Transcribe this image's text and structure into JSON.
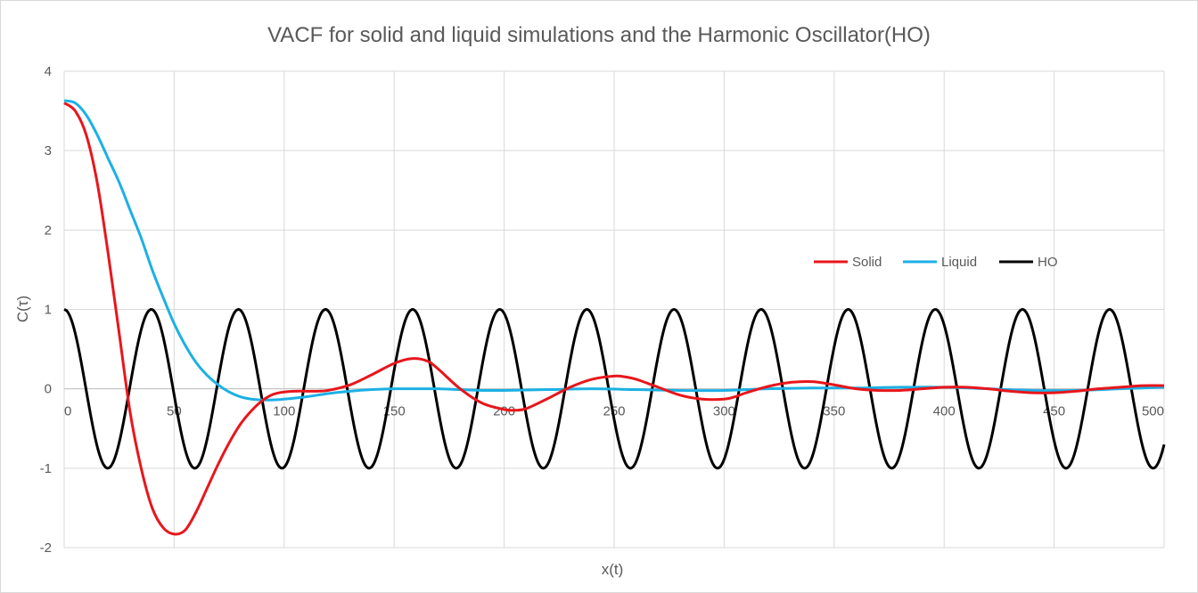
{
  "chart_data": {
    "type": "line",
    "title": "VACF for solid and liquid simulations and the Harmonic Oscillator(HO)",
    "xlabel": "x(t)",
    "ylabel": "C(τ)",
    "xlim": [
      0,
      500
    ],
    "ylim": [
      -2,
      4
    ],
    "x_ticks": [
      0,
      50,
      100,
      150,
      200,
      250,
      300,
      350,
      400,
      450,
      500
    ],
    "y_ticks": [
      -2,
      -1,
      0,
      1,
      2,
      3,
      4
    ],
    "grid": "vertical and horizontal major gridlines",
    "legend_position": "right-center",
    "series": [
      {
        "name": "Solid",
        "color": "#e8161b",
        "x": [
          0,
          5,
          10,
          15,
          20,
          25,
          30,
          35,
          40,
          45,
          50,
          55,
          60,
          65,
          70,
          75,
          80,
          85,
          90,
          95,
          100,
          105,
          110,
          115,
          120,
          130,
          140,
          150,
          158,
          165,
          170,
          180,
          190,
          200,
          205,
          210,
          220,
          230,
          240,
          250,
          255,
          260,
          270,
          280,
          290,
          300,
          305,
          310,
          320,
          330,
          340,
          350,
          360,
          370,
          380,
          390,
          400,
          410,
          420,
          430,
          440,
          450,
          460,
          470,
          480,
          490,
          500
        ],
        "values": [
          3.6,
          3.5,
          3.2,
          2.6,
          1.7,
          0.7,
          -0.3,
          -1.0,
          -1.5,
          -1.75,
          -1.83,
          -1.78,
          -1.55,
          -1.25,
          -0.95,
          -0.68,
          -0.45,
          -0.28,
          -0.15,
          -0.07,
          -0.04,
          -0.03,
          -0.03,
          -0.03,
          -0.02,
          0.05,
          0.18,
          0.32,
          0.38,
          0.35,
          0.25,
          0.0,
          -0.18,
          -0.26,
          -0.27,
          -0.25,
          -0.12,
          0.02,
          0.12,
          0.16,
          0.15,
          0.12,
          0.02,
          -0.08,
          -0.13,
          -0.13,
          -0.1,
          -0.05,
          0.03,
          0.08,
          0.09,
          0.05,
          0.0,
          -0.02,
          -0.02,
          0.0,
          0.02,
          0.02,
          0.0,
          -0.03,
          -0.05,
          -0.05,
          -0.03,
          0.0,
          0.02,
          0.04,
          0.04
        ]
      },
      {
        "name": "Liquid",
        "color": "#1cb0e4",
        "x": [
          0,
          5,
          10,
          15,
          20,
          25,
          30,
          35,
          40,
          45,
          50,
          55,
          60,
          65,
          70,
          75,
          80,
          85,
          90,
          95,
          100,
          110,
          120,
          130,
          140,
          150,
          160,
          170,
          180,
          190,
          200,
          220,
          240,
          260,
          280,
          300,
          320,
          340,
          360,
          380,
          400,
          420,
          440,
          460,
          480,
          500
        ],
        "values": [
          3.63,
          3.6,
          3.45,
          3.2,
          2.9,
          2.6,
          2.25,
          1.9,
          1.5,
          1.15,
          0.82,
          0.55,
          0.33,
          0.17,
          0.05,
          -0.04,
          -0.1,
          -0.13,
          -0.14,
          -0.14,
          -0.13,
          -0.1,
          -0.06,
          -0.03,
          -0.01,
          0.0,
          0.0,
          0.0,
          -0.01,
          -0.02,
          -0.02,
          -0.01,
          0.0,
          -0.01,
          -0.02,
          -0.02,
          0.0,
          0.01,
          0.01,
          0.02,
          0.02,
          0.0,
          -0.02,
          -0.02,
          0.0,
          0.02
        ]
      },
      {
        "name": "HO",
        "color": "#000000",
        "period": 39.6,
        "amplitude": 1,
        "x_range": [
          0,
          500
        ]
      }
    ]
  }
}
